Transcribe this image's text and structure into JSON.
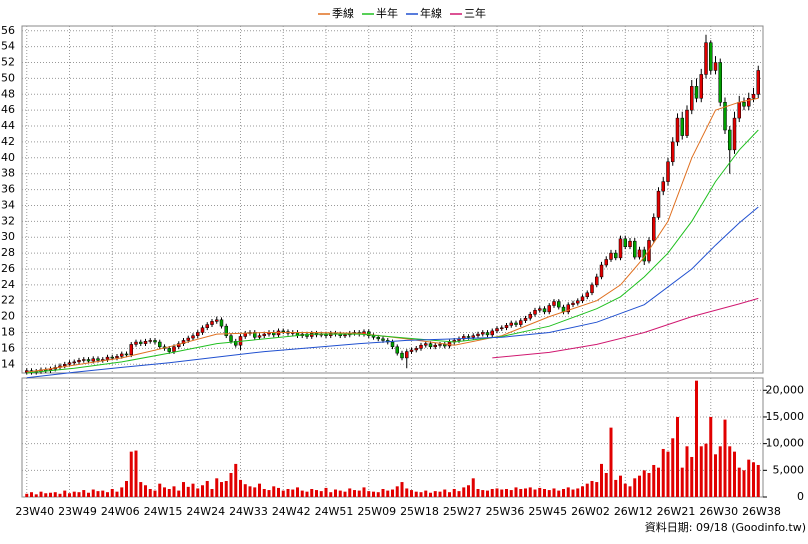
{
  "chart_data": {
    "type": "candlestick",
    "legend": [
      {
        "name": "季線",
        "color": "#e07020"
      },
      {
        "name": "半年",
        "color": "#20c020"
      },
      {
        "name": "年線",
        "color": "#2050d0"
      },
      {
        "name": "三年",
        "color": "#d01870"
      }
    ],
    "footnote": "資料日期: 09/18 (Goodinfo.tw)",
    "xticks": [
      {
        "value": 0,
        "label": "23W40"
      },
      {
        "value": 9,
        "label": "23W49"
      },
      {
        "value": 18,
        "label": "24W06"
      },
      {
        "value": 27,
        "label": "24W15"
      },
      {
        "value": 36,
        "label": "24W24"
      },
      {
        "value": 45,
        "label": "24W33"
      },
      {
        "value": 54,
        "label": "24W42"
      },
      {
        "value": 63,
        "label": "24W51"
      },
      {
        "value": 72,
        "label": "25W09"
      },
      {
        "value": 81,
        "label": "25W18"
      },
      {
        "value": 90,
        "label": "25W27"
      },
      {
        "value": 99,
        "label": "25W36"
      },
      {
        "value": 108,
        "label": "25W45"
      },
      {
        "value": 117,
        "label": "26W02"
      },
      {
        "value": 126,
        "label": "26W12"
      },
      {
        "value": 135,
        "label": "26W21"
      },
      {
        "value": 144,
        "label": "26W30"
      },
      {
        "value": 153,
        "label": "26W38"
      }
    ],
    "xlim": [
      -1,
      155
    ],
    "ylim": [
      12.9,
      56.6
    ],
    "yticks": [
      14,
      16,
      18,
      20,
      22,
      24,
      26,
      28,
      30,
      32,
      34,
      36,
      38,
      40,
      42,
      44,
      46,
      48,
      50,
      52,
      54,
      56
    ],
    "y2lim": [
      0,
      22300
    ],
    "y2ticks": [
      0,
      {
        "value": 5000,
        "label": "5,000"
      },
      {
        "value": 10000,
        "label": "10,000"
      },
      {
        "value": 15000,
        "label": "15,000"
      },
      {
        "value": 20000,
        "label": "20,000"
      }
    ],
    "up_color": "#e00000",
    "down_color": "#00a000",
    "volume_color": "#e00000",
    "grid": true,
    "open": [
      13.0,
      13.2,
      13.0,
      13.1,
      13.3,
      13.2,
      13.4,
      13.6,
      13.8,
      14.0,
      14.2,
      14.3,
      14.5,
      14.6,
      14.4,
      14.7,
      14.5,
      14.6,
      14.9,
      14.8,
      15.0,
      15.3,
      15.2,
      16.5,
      16.8,
      16.6,
      16.9,
      17.0,
      16.8,
      16.2,
      16.0,
      15.6,
      16.2,
      16.6,
      17.0,
      17.3,
      17.6,
      18.0,
      18.6,
      19.0,
      19.4,
      19.6,
      18.8,
      17.6,
      16.9,
      16.4,
      17.5,
      17.9,
      18.0,
      17.4,
      17.6,
      17.8,
      18.0,
      17.7,
      18.2,
      18.1,
      17.9,
      18.0,
      17.6,
      17.8,
      17.5,
      17.9,
      17.7,
      17.8,
      17.6,
      17.9,
      17.8,
      17.6,
      17.7,
      17.9,
      18.0,
      17.8,
      18.1,
      17.6,
      17.4,
      17.2,
      17.0,
      16.8,
      16.2,
      15.4,
      14.8,
      15.6,
      15.8,
      16.0,
      16.4,
      16.6,
      16.2,
      16.4,
      16.5,
      16.3,
      16.8,
      17.0,
      17.2,
      17.5,
      17.4,
      17.6,
      17.8,
      18.0,
      17.7,
      18.2,
      18.5,
      18.6,
      18.9,
      19.2,
      19.0,
      19.5,
      19.8,
      20.3,
      20.8,
      21.0,
      20.6,
      21.4,
      21.9,
      21.2,
      20.6,
      21.5,
      21.7,
      22.0,
      22.5,
      23.0,
      24.0,
      25.0,
      26.5,
      27.2,
      28.0,
      27.4,
      29.8,
      28.8,
      29.5,
      27.5,
      28.4,
      27.0,
      29.6,
      32.5,
      35.8,
      37.0,
      39.5,
      42.0,
      45.0,
      42.8,
      46.0,
      49.0,
      47.5,
      50.5,
      54.5,
      51.0,
      52.0,
      47.0,
      43.5,
      41.0,
      45.0,
      47.0,
      46.5,
      47.5,
      48.0
    ],
    "high": [
      13.5,
      13.5,
      13.4,
      13.6,
      13.6,
      13.7,
      13.9,
      14.1,
      14.3,
      14.5,
      14.6,
      14.8,
      14.9,
      14.9,
      15.0,
      15.0,
      14.9,
      15.2,
      15.2,
      15.3,
      15.6,
      15.6,
      16.8,
      17.1,
      17.1,
      17.2,
      17.3,
      17.3,
      17.1,
      16.5,
      16.3,
      16.5,
      16.9,
      17.3,
      17.6,
      17.9,
      18.3,
      18.9,
      19.3,
      19.7,
      20.0,
      19.9,
      19.1,
      17.9,
      17.2,
      17.8,
      18.2,
      18.3,
      18.3,
      17.9,
      18.1,
      18.3,
      18.3,
      18.5,
      18.5,
      18.4,
      18.3,
      18.3,
      18.1,
      18.1,
      18.2,
      18.2,
      18.1,
      18.1,
      18.2,
      18.2,
      18.1,
      17.9,
      18.2,
      18.3,
      18.3,
      18.4,
      18.4,
      17.9,
      17.7,
      17.5,
      17.3,
      17.1,
      16.5,
      15.7,
      15.9,
      16.1,
      16.3,
      16.7,
      16.9,
      16.9,
      16.7,
      16.8,
      16.8,
      17.1,
      17.3,
      17.5,
      17.8,
      17.8,
      17.9,
      18.1,
      18.3,
      18.3,
      18.5,
      18.8,
      18.9,
      19.2,
      19.5,
      19.5,
      19.8,
      20.1,
      20.6,
      21.1,
      21.3,
      21.3,
      21.7,
      22.2,
      22.2,
      21.5,
      21.8,
      22.0,
      22.3,
      22.8,
      23.3,
      24.3,
      25.4,
      26.9,
      27.6,
      28.4,
      28.4,
      30.2,
      30.2,
      29.9,
      29.9,
      28.8,
      28.8,
      30.0,
      33.0,
      36.3,
      37.6,
      40.0,
      42.6,
      45.6,
      45.8,
      46.6,
      49.8,
      50.0,
      51.2,
      55.5,
      54.8,
      52.8,
      52.5,
      47.6,
      44.0,
      45.8,
      47.8,
      47.6,
      48.2,
      48.8,
      51.6
    ],
    "low": [
      12.7,
      12.7,
      12.7,
      12.8,
      12.9,
      12.9,
      13.1,
      13.3,
      13.5,
      13.7,
      13.9,
      14.0,
      14.2,
      14.1,
      14.1,
      14.2,
      14.2,
      14.3,
      14.5,
      14.5,
      14.7,
      14.9,
      14.9,
      16.2,
      16.3,
      16.3,
      16.6,
      16.5,
      15.9,
      15.7,
      15.3,
      15.3,
      15.9,
      16.3,
      16.7,
      17.0,
      17.3,
      17.7,
      18.3,
      18.7,
      19.1,
      18.5,
      17.3,
      16.6,
      16.1,
      15.8,
      17.2,
      17.6,
      17.1,
      17.1,
      17.3,
      17.5,
      17.4,
      17.4,
      17.8,
      17.6,
      17.6,
      17.3,
      17.3,
      17.2,
      17.2,
      17.4,
      17.4,
      17.3,
      17.3,
      17.5,
      17.3,
      17.3,
      17.4,
      17.6,
      17.5,
      17.5,
      17.3,
      17.1,
      16.9,
      16.7,
      16.5,
      15.9,
      15.1,
      14.5,
      13.5,
      15.3,
      15.5,
      15.7,
      16.1,
      15.9,
      15.9,
      16.1,
      16.0,
      16.0,
      16.5,
      16.7,
      16.9,
      17.1,
      17.1,
      17.3,
      17.5,
      17.4,
      17.4,
      17.9,
      18.2,
      18.3,
      18.6,
      18.7,
      18.7,
      19.2,
      19.5,
      20.0,
      20.5,
      20.3,
      20.3,
      21.1,
      20.9,
      20.3,
      20.3,
      21.2,
      21.4,
      21.7,
      22.2,
      22.7,
      23.7,
      24.7,
      26.2,
      26.9,
      27.1,
      27.1,
      28.5,
      28.5,
      27.2,
      27.2,
      26.5,
      26.7,
      29.3,
      32.2,
      35.3,
      36.5,
      39.0,
      41.5,
      42.3,
      42.5,
      45.5,
      47.0,
      47.0,
      50.0,
      50.5,
      50.5,
      46.5,
      43.0,
      38.0,
      40.5,
      44.5,
      46.0,
      46.0,
      47.0,
      47.5
    ],
    "close": [
      13.2,
      13.0,
      13.1,
      13.3,
      13.2,
      13.4,
      13.6,
      13.8,
      14.0,
      14.2,
      14.3,
      14.5,
      14.6,
      14.4,
      14.7,
      14.5,
      14.6,
      14.9,
      14.8,
      15.0,
      15.3,
      15.2,
      16.5,
      16.8,
      16.6,
      16.9,
      17.0,
      16.8,
      16.2,
      16.0,
      15.6,
      16.2,
      16.6,
      17.0,
      17.3,
      17.6,
      18.0,
      18.6,
      19.0,
      19.4,
      19.6,
      18.8,
      17.6,
      16.9,
      16.4,
      17.5,
      17.9,
      18.0,
      17.4,
      17.6,
      17.8,
      18.0,
      17.7,
      18.2,
      18.1,
      17.9,
      18.0,
      17.6,
      17.8,
      17.5,
      17.9,
      17.7,
      17.8,
      17.6,
      17.9,
      17.8,
      17.6,
      17.7,
      17.9,
      18.0,
      17.8,
      18.1,
      17.6,
      17.4,
      17.2,
      17.0,
      16.8,
      16.2,
      15.4,
      14.8,
      15.6,
      15.8,
      16.0,
      16.4,
      16.6,
      16.2,
      16.4,
      16.5,
      16.3,
      16.8,
      17.0,
      17.2,
      17.5,
      17.4,
      17.6,
      17.8,
      18.0,
      17.7,
      18.2,
      18.5,
      18.6,
      18.9,
      19.2,
      19.0,
      19.5,
      19.8,
      20.3,
      20.8,
      21.0,
      20.6,
      21.4,
      21.9,
      21.2,
      20.6,
      21.5,
      21.7,
      22.0,
      22.5,
      23.0,
      24.0,
      25.0,
      26.5,
      27.2,
      28.0,
      27.4,
      29.8,
      28.8,
      29.5,
      27.5,
      28.4,
      27.0,
      29.6,
      32.5,
      35.8,
      37.0,
      39.5,
      42.0,
      45.0,
      42.8,
      46.0,
      49.0,
      47.5,
      50.5,
      54.5,
      51.0,
      52.0,
      47.0,
      43.5,
      41.0,
      45.0,
      47.0,
      46.5,
      47.5,
      48.0,
      51.0
    ],
    "volume": [
      600,
      900,
      500,
      1000,
      700,
      800,
      900,
      600,
      1200,
      700,
      1000,
      900,
      1300,
      800,
      1400,
      1100,
      1200,
      900,
      1500,
      1000,
      1800,
      3000,
      8500,
      8700,
      2800,
      2200,
      1500,
      1200,
      2500,
      1800,
      1500,
      2000,
      1200,
      2800,
      1900,
      2500,
      1600,
      2200,
      3000,
      1500,
      3500,
      2800,
      3000,
      4500,
      6200,
      3200,
      2400,
      2000,
      1800,
      2500,
      1500,
      1300,
      2000,
      1700,
      1200,
      1500,
      1400,
      1800,
      1200,
      1000,
      1500,
      1300,
      1100,
      1700,
      900,
      1400,
      1200,
      1000,
      1600,
      1300,
      1200,
      1800,
      1100,
      1000,
      900,
      1500,
      1200,
      1400,
      2000,
      2800,
      1600,
      1300,
      1000,
      900,
      1200,
      800,
      1100,
      1000,
      1400,
      900,
      1500,
      1100,
      1800,
      2200,
      3500,
      1500,
      1300,
      1200,
      1500,
      1600,
      1400,
      1500,
      1300,
      1800,
      1500,
      1600,
      1800,
      1400,
      1700,
      1500,
      1300,
      1600,
      1200,
      1500,
      1800,
      1400,
      1600,
      2000,
      2500,
      3000,
      2800,
      6200,
      4500,
      13000,
      3200,
      4000,
      2500,
      2000,
      3500,
      4000,
      5000,
      4500,
      6000,
      5500,
      9000,
      8500,
      11000,
      15000,
      5500,
      9500,
      7500,
      21800,
      9500,
      10000,
      15000,
      8000,
      9500,
      14500,
      9500,
      8500,
      5500,
      5000,
      7000,
      6500,
      6000
    ],
    "lines": [
      {
        "x": [
          0,
          10,
          20,
          30,
          40,
          50,
          60,
          70,
          80,
          90,
          100,
          110,
          120,
          125,
          130,
          135,
          140,
          145,
          150,
          154
        ],
        "values": [
          13.0,
          13.9,
          14.8,
          16.2,
          17.8,
          18.0,
          18.0,
          17.9,
          17.2,
          16.4,
          17.6,
          20.0,
          22.0,
          24.0,
          27.5,
          32.0,
          40.0,
          46.0,
          47.0,
          47.5
        ]
      },
      {
        "x": [
          0,
          10,
          20,
          30,
          40,
          50,
          60,
          70,
          80,
          90,
          100,
          110,
          120,
          125,
          130,
          135,
          140,
          145,
          150,
          154
        ],
        "values": [
          12.9,
          13.5,
          14.3,
          15.4,
          16.6,
          17.2,
          17.8,
          17.8,
          17.3,
          16.8,
          17.5,
          18.8,
          21.0,
          22.5,
          25.0,
          28.0,
          32.0,
          37.0,
          41.0,
          43.5
        ]
      },
      {
        "x": [
          0,
          10,
          20,
          30,
          40,
          50,
          60,
          70,
          80,
          90,
          100,
          110,
          120,
          130,
          140,
          145,
          150,
          154
        ],
        "values": [
          12.3,
          13.0,
          13.6,
          14.2,
          14.9,
          15.6,
          16.1,
          16.6,
          17.0,
          17.2,
          17.4,
          18.0,
          19.3,
          21.5,
          26.0,
          29.0,
          31.8,
          33.8
        ]
      },
      {
        "x": [
          98,
          110,
          120,
          130,
          140,
          150,
          154
        ],
        "values": [
          14.8,
          15.5,
          16.5,
          18.0,
          20.0,
          21.6,
          22.3
        ]
      }
    ]
  }
}
